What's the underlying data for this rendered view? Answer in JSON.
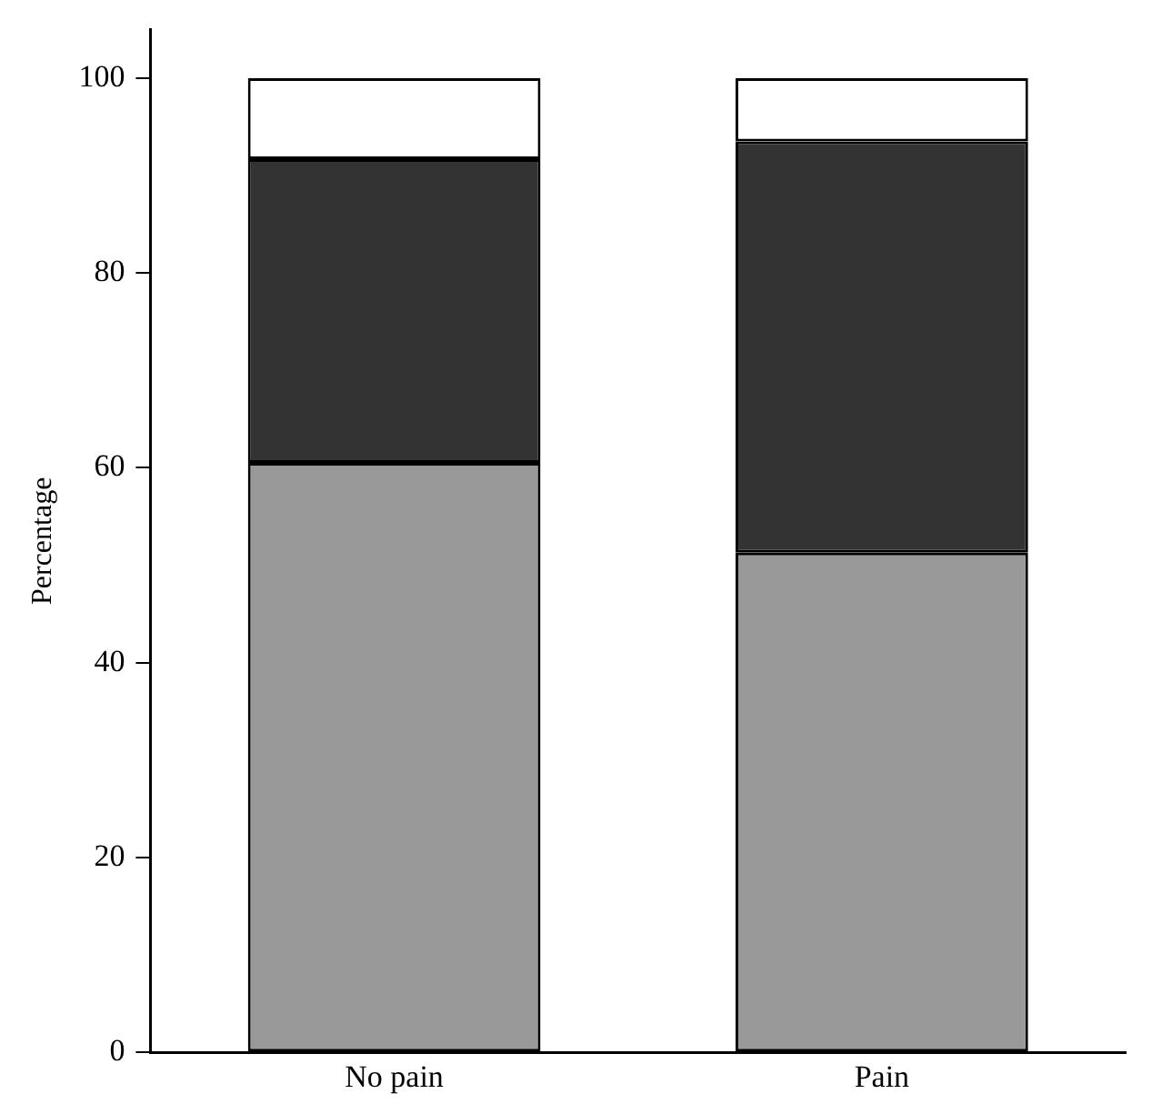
{
  "chart_data": {
    "type": "bar",
    "stacked": true,
    "ylabel": "Percentage",
    "categories": [
      "No pain",
      "Pain"
    ],
    "series": [
      {
        "color": "#999999",
        "values": [
          60.5,
          51.3
        ]
      },
      {
        "color": "#333333",
        "values": [
          31.2,
          42.2
        ]
      },
      {
        "color": "#ffffff",
        "values": [
          8.3,
          6.5
        ]
      }
    ],
    "ylim": [
      0,
      105
    ],
    "yticks": [
      0,
      20,
      40,
      60,
      80,
      100
    ],
    "grid": false,
    "legend": false
  }
}
